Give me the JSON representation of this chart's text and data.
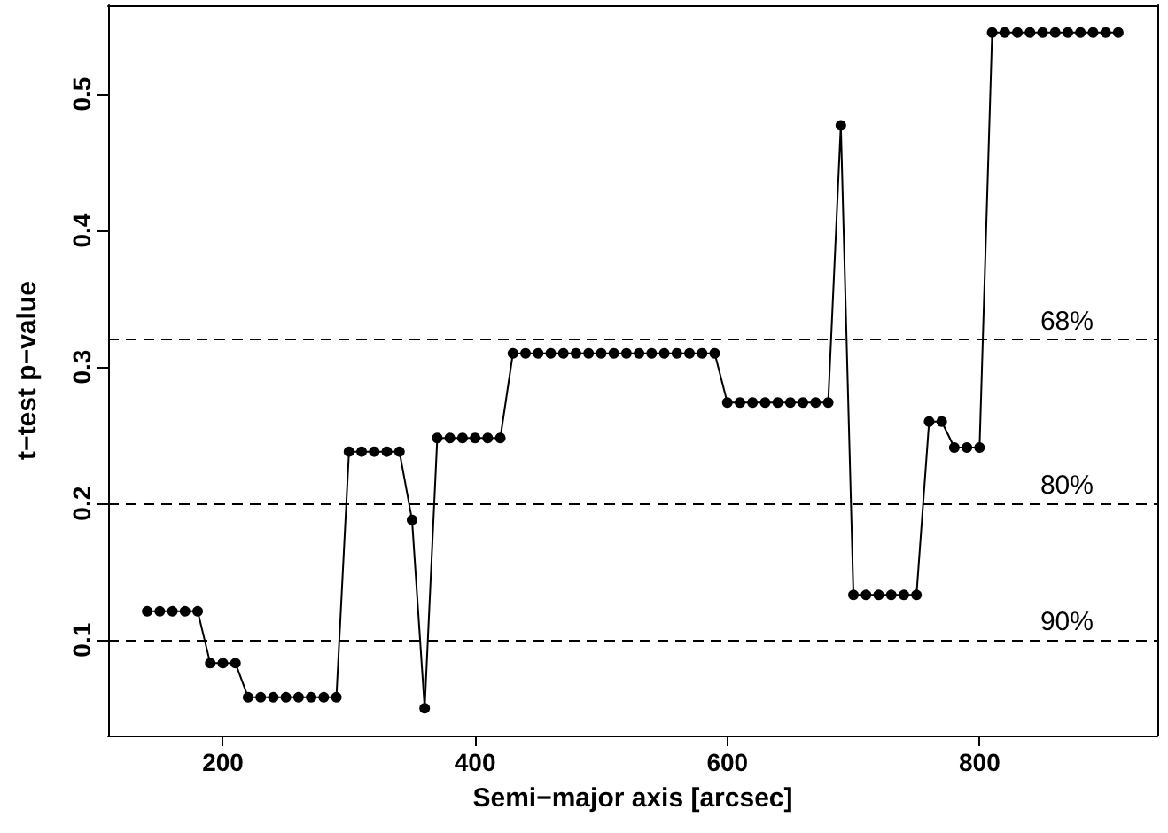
{
  "chart_data": {
    "type": "line",
    "xlabel": "Semi−major axis [arcsec]",
    "ylabel": "t−test p−value",
    "x": [
      140,
      150,
      160,
      170,
      180,
      190,
      200,
      210,
      220,
      230,
      240,
      250,
      260,
      270,
      280,
      290,
      300,
      310,
      320,
      330,
      340,
      350,
      360,
      370,
      380,
      390,
      400,
      410,
      420,
      430,
      440,
      450,
      460,
      470,
      480,
      490,
      500,
      510,
      520,
      530,
      540,
      550,
      560,
      570,
      580,
      590,
      600,
      610,
      620,
      630,
      640,
      650,
      660,
      670,
      680,
      690,
      700,
      710,
      720,
      730,
      740,
      750,
      760,
      770,
      780,
      790,
      800,
      810,
      820,
      830,
      840,
      850,
      860,
      870,
      880,
      890,
      900,
      910
    ],
    "series": [
      {
        "color": "#000000",
        "values": [
          0.121,
          0.121,
          0.121,
          0.121,
          0.121,
          0.083,
          0.083,
          0.083,
          0.058,
          0.058,
          0.058,
          0.058,
          0.058,
          0.058,
          0.058,
          0.058,
          0.238,
          0.238,
          0.238,
          0.238,
          0.238,
          0.188,
          0.05,
          0.248,
          0.248,
          0.248,
          0.248,
          0.248,
          0.248,
          0.31,
          0.31,
          0.31,
          0.31,
          0.31,
          0.31,
          0.31,
          0.31,
          0.31,
          0.31,
          0.31,
          0.31,
          0.31,
          0.31,
          0.31,
          0.31,
          0.31,
          0.274,
          0.274,
          0.274,
          0.274,
          0.274,
          0.274,
          0.274,
          0.274,
          0.274,
          0.477,
          0.133,
          0.133,
          0.133,
          0.133,
          0.133,
          0.133,
          0.26,
          0.26,
          0.241,
          0.241,
          0.241,
          0.545,
          0.545,
          0.545,
          0.545,
          0.545,
          0.545,
          0.545,
          0.545,
          0.545,
          0.545,
          0.545
        ]
      }
    ],
    "xlim": [
      109,
      941
    ],
    "xticks": [
      200,
      400,
      600,
      800
    ],
    "ylim": [
      0.03,
      0.565
    ],
    "yticks": [
      0.1,
      0.2,
      0.3,
      0.4,
      0.5
    ],
    "ref_lines": [
      {
        "axis": "y",
        "value": 0.32,
        "line_style": "dashed"
      },
      {
        "axis": "y",
        "value": 0.2,
        "line_style": "dashed"
      },
      {
        "axis": "y",
        "value": 0.1,
        "line_style": "dashed"
      }
    ],
    "annotations": [
      {
        "text": "68%",
        "y": 0.32
      },
      {
        "text": "80%",
        "y": 0.2
      },
      {
        "text": "90%",
        "y": 0.1
      }
    ],
    "grid": false,
    "marker": "circle",
    "line_style": "solid"
  }
}
